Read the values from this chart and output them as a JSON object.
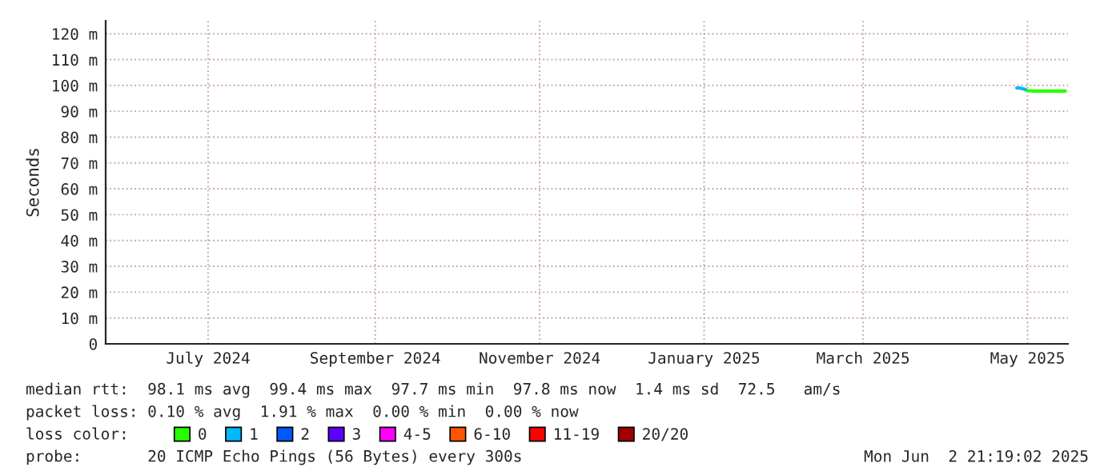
{
  "chart_data": {
    "type": "line",
    "ylabel": "Seconds",
    "xlim": [
      "2024-05-24",
      "2025-05-16"
    ],
    "xticks": [
      {
        "value": "2024-07-01",
        "label": "July 2024"
      },
      {
        "value": "2024-09-01",
        "label": "September 2024"
      },
      {
        "value": "2024-11-01",
        "label": "November 2024"
      },
      {
        "value": "2025-01-01",
        "label": "January 2025"
      },
      {
        "value": "2025-03-01",
        "label": "March 2025"
      },
      {
        "value": "2025-05-01",
        "label": "May 2025"
      }
    ],
    "ylim": [
      0,
      125
    ],
    "yticks": [
      0,
      {
        "value": 10,
        "label": "10 m"
      },
      {
        "value": 20,
        "label": "20 m"
      },
      {
        "value": 30,
        "label": "30 m"
      },
      {
        "value": 40,
        "label": "40 m"
      },
      {
        "value": 50,
        "label": "50 m"
      },
      {
        "value": 60,
        "label": "60 m"
      },
      {
        "value": 70,
        "label": "70 m"
      },
      {
        "value": 80,
        "label": "80 m"
      },
      {
        "value": 90,
        "label": "90 m"
      },
      {
        "value": 100,
        "label": "100 m"
      },
      {
        "value": 110,
        "label": "110 m"
      },
      {
        "value": 120,
        "label": "120 m"
      }
    ],
    "grid": true,
    "legend": "bottom",
    "legend_title": "loss color:",
    "series": [
      {
        "name": "0",
        "color": "#26ff00",
        "x": [
          "2025-04-30",
          "2025-05-01",
          "2025-05-03",
          "2025-05-06",
          "2025-05-10",
          "2025-05-15"
        ],
        "values": [
          98.5,
          98,
          97.8,
          97.8,
          97.8,
          97.8
        ]
      },
      {
        "name": "1",
        "color": "#00b8ff",
        "x": [
          "2025-04-27",
          "2025-04-28",
          "2025-04-29",
          "2025-04-30"
        ],
        "values": [
          99,
          99,
          98.8,
          98.5
        ]
      },
      {
        "name": "2",
        "color": "#0059ff"
      },
      {
        "name": "3",
        "color": "#5e00ff"
      },
      {
        "name": "4-5",
        "color": "#ff00ff"
      },
      {
        "name": "6-10",
        "color": "#ff5500"
      },
      {
        "name": "11-19",
        "color": "#ff0000"
      },
      {
        "name": "20/20",
        "color": "#a10000"
      }
    ],
    "annotations": [
      "median rtt:  98.1 ms avg  99.4 ms max  97.7 ms min  97.8 ms now  1.4 ms sd  72.5   am/s",
      "packet loss: 0.10 % avg  1.91 % max  0.00 % min  0.00 % now",
      "probe:       20 ICMP Echo Pings (56 Bytes) every 300s",
      "Mon Jun  2 21:19:02 2025"
    ]
  }
}
